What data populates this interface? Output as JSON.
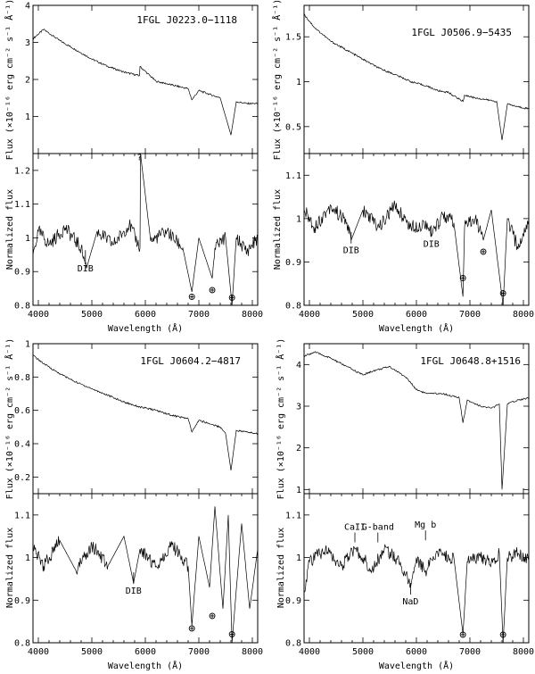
{
  "chart_data": [
    {
      "type": "line",
      "title": "1FGL J0223.0−1118",
      "flux_panel": {
        "ylabel": "Flux (×10⁻¹⁶ erg cm⁻² s⁻¹ Å⁻¹)",
        "ylim": [
          0,
          4
        ],
        "yticks": [
          "1",
          "2",
          "3",
          "4"
        ],
        "x": [
          3900,
          4100,
          4400,
          4700,
          5000,
          5300,
          5600,
          5890,
          5900,
          6200,
          6500,
          6800,
          6870,
          7000,
          7200,
          7400,
          7600,
          7700,
          7900,
          8100
        ],
        "y": [
          3.1,
          3.35,
          3.05,
          2.8,
          2.55,
          2.35,
          2.2,
          2.1,
          2.35,
          1.95,
          1.85,
          1.75,
          1.45,
          1.7,
          1.6,
          1.5,
          0.5,
          1.4,
          1.35,
          1.35
        ]
      },
      "norm_panel": {
        "ylabel": "Normalized flux",
        "ylim": [
          0.8,
          1.25
        ],
        "yticks": [
          "0.8",
          "0.9",
          "1",
          "1.1",
          "1.2"
        ],
        "x": [
          3900,
          4000,
          4200,
          4500,
          4800,
          4900,
          5100,
          5400,
          5700,
          5900,
          5910,
          6100,
          6400,
          6700,
          6870,
          7000,
          7250,
          7300,
          7500,
          7620,
          7700,
          7900,
          8100
        ],
        "y": [
          0.95,
          1.02,
          0.98,
          1.03,
          0.97,
          0.91,
          1.02,
          0.98,
          1.04,
          0.97,
          1.25,
          0.99,
          1.02,
          0.97,
          0.84,
          1.0,
          0.88,
          0.97,
          1.0,
          0.8,
          1.0,
          0.96,
          1.0
        ]
      },
      "annotations": [
        {
          "text": "DIB",
          "x": 4880,
          "y": 0.9
        },
        {
          "text": "?",
          "x": 5890,
          "y": 1.23
        },
        {
          "text": "⊕",
          "x": 6870,
          "y": 0.815
        },
        {
          "text": "⊕",
          "x": 7250,
          "y": 0.835
        },
        {
          "text": "⊕",
          "x": 7620,
          "y": 0.812
        }
      ]
    },
    {
      "type": "line",
      "title": "1FGL J0506.9−5435",
      "flux_panel": {
        "ylabel": "Flux (×10⁻¹⁶ erg cm⁻² s⁻¹ Å⁻¹)",
        "ylim": [
          0.2,
          1.85
        ],
        "yticks": [
          "0.5",
          "1",
          "1.5"
        ],
        "x": [
          3900,
          4100,
          4400,
          4700,
          5000,
          5300,
          5600,
          5900,
          6200,
          6400,
          6600,
          6870,
          6900,
          7100,
          7300,
          7500,
          7600,
          7700,
          7900,
          8100
        ],
        "y": [
          1.75,
          1.6,
          1.45,
          1.35,
          1.25,
          1.15,
          1.08,
          1.0,
          0.95,
          0.9,
          0.88,
          0.78,
          0.85,
          0.82,
          0.8,
          0.78,
          0.35,
          0.75,
          0.72,
          0.7
        ]
      },
      "norm_panel": {
        "ylabel": "Normalized flux",
        "ylim": [
          0.8,
          1.15
        ],
        "yticks": [
          "0.8",
          "0.9",
          "1",
          "1.1"
        ],
        "x": [
          3900,
          4100,
          4400,
          4700,
          4780,
          5000,
          5300,
          5600,
          5900,
          6200,
          6280,
          6500,
          6700,
          6870,
          6900,
          7100,
          7250,
          7400,
          7500,
          7620,
          7700,
          7900,
          8100
        ],
        "y": [
          1.02,
          0.98,
          1.03,
          0.99,
          0.95,
          1.02,
          0.98,
          1.03,
          0.98,
          0.99,
          0.96,
          1.01,
          0.99,
          0.82,
          0.98,
          1.0,
          0.95,
          1.02,
          0.92,
          0.8,
          1.0,
          0.93,
          1.0
        ]
      },
      "annotations": [
        {
          "text": "DIB",
          "x": 4780,
          "y": 0.92
        },
        {
          "text": "DIB",
          "x": 6280,
          "y": 0.935
        },
        {
          "text": "⊕",
          "x": 6870,
          "y": 0.855
        },
        {
          "text": "⊕",
          "x": 7250,
          "y": 0.915
        },
        {
          "text": "⊕",
          "x": 7620,
          "y": 0.82
        }
      ]
    },
    {
      "type": "line",
      "title": "1FGL J0604.2−4817",
      "flux_panel": {
        "ylabel": "Flux (×10⁻¹⁶ erg cm⁻² s⁻¹ Å⁻¹)",
        "ylim": [
          0.1,
          1.0
        ],
        "yticks": [
          "0.2",
          "0.4",
          "0.6",
          "0.8",
          "1"
        ],
        "x": [
          3900,
          4100,
          4400,
          4700,
          5000,
          5300,
          5600,
          5900,
          6200,
          6500,
          6800,
          6870,
          7000,
          7200,
          7400,
          7500,
          7600,
          7700,
          7900,
          8100
        ],
        "y": [
          0.93,
          0.88,
          0.82,
          0.77,
          0.73,
          0.69,
          0.65,
          0.62,
          0.6,
          0.57,
          0.55,
          0.47,
          0.54,
          0.52,
          0.5,
          0.46,
          0.24,
          0.48,
          0.47,
          0.46
        ]
      },
      "norm_panel": {
        "ylabel": "Normalized flux",
        "ylim": [
          0.8,
          1.15
        ],
        "yticks": [
          "0.8",
          "0.9",
          "1",
          "1.1"
        ],
        "x": [
          3900,
          4100,
          4400,
          4700,
          5000,
          5300,
          5600,
          5780,
          5900,
          6200,
          6500,
          6800,
          6870,
          7000,
          7200,
          7300,
          7450,
          7550,
          7620,
          7800,
          7950,
          8100
        ],
        "y": [
          1.02,
          0.98,
          1.04,
          0.97,
          1.03,
          0.98,
          1.05,
          0.94,
          1.02,
          0.98,
          1.03,
          0.98,
          0.84,
          1.05,
          0.93,
          1.12,
          0.88,
          1.1,
          0.8,
          1.08,
          0.88,
          1.02
        ]
      },
      "annotations": [
        {
          "text": "DIB",
          "x": 5780,
          "y": 0.915
        },
        {
          "text": "⊕",
          "x": 6870,
          "y": 0.825
        },
        {
          "text": "⊕",
          "x": 7250,
          "y": 0.855
        },
        {
          "text": "⊕",
          "x": 7620,
          "y": 0.812
        }
      ]
    },
    {
      "type": "line",
      "title": "1FGL J0648.8+1516",
      "flux_panel": {
        "ylabel": "Flux (×10⁻¹⁶ erg cm⁻² s⁻¹ Å⁻¹)",
        "ylim": [
          0.9,
          4.5
        ],
        "yticks": [
          "1",
          "2",
          "3",
          "4"
        ],
        "x": [
          3900,
          4100,
          4400,
          4700,
          5000,
          5200,
          5500,
          5800,
          6000,
          6200,
          6500,
          6800,
          6870,
          6950,
          7200,
          7400,
          7550,
          7600,
          7700,
          7900,
          8100
        ],
        "y": [
          4.2,
          4.3,
          4.15,
          3.95,
          3.75,
          3.85,
          3.95,
          3.7,
          3.4,
          3.3,
          3.3,
          3.2,
          2.6,
          3.15,
          3.0,
          2.95,
          3.05,
          1.0,
          3.05,
          3.15,
          3.2
        ]
      },
      "norm_panel": {
        "ylabel": "Normalized flux",
        "ylim": [
          0.8,
          1.15
        ],
        "yticks": [
          "0.8",
          "0.9",
          "1",
          "1.1"
        ],
        "x": [
          3900,
          4000,
          4300,
          4600,
          4850,
          5000,
          5170,
          5400,
          5700,
          5890,
          6000,
          6170,
          6400,
          6700,
          6870,
          6950,
          7200,
          7400,
          7550,
          7620,
          7700,
          7900,
          8100
        ],
        "y": [
          0.92,
          0.99,
          1.02,
          0.98,
          1.02,
          1.0,
          0.97,
          1.02,
          0.99,
          0.93,
          1.0,
          0.97,
          1.01,
          1.0,
          0.82,
          0.99,
          1.0,
          0.99,
          1.01,
          0.8,
          1.0,
          1.01,
          1.0
        ]
      },
      "annotations": [
        {
          "text": "CaII",
          "x": 4850,
          "y": 1.065
        },
        {
          "text": "G-band",
          "x": 5280,
          "y": 1.065
        },
        {
          "text": "Mg b",
          "x": 6170,
          "y": 1.07
        },
        {
          "text": "NaD",
          "x": 5890,
          "y": 0.89
        },
        {
          "text": "⊕",
          "x": 6870,
          "y": 0.81
        },
        {
          "text": "⊕",
          "x": 7620,
          "y": 0.81
        }
      ]
    }
  ],
  "shared": {
    "xlabel": "Wavelength (Å)",
    "xlim": [
      3900,
      8100
    ],
    "xticks": [
      "4000",
      "5000",
      "6000",
      "7000",
      "8000"
    ]
  }
}
